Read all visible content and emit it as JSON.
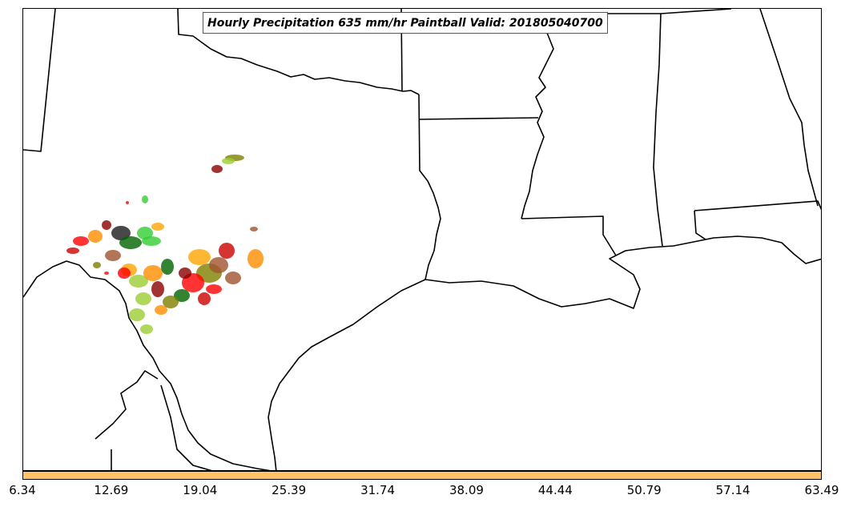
{
  "title": "Hourly Precipitation 635 mm/hr Paintball Valid: 201805040700",
  "colorbar": {
    "color": "#ffc266",
    "tick_labels": [
      "6.34",
      "12.69",
      "19.04",
      "25.39",
      "31.74",
      "38.09",
      "44.44",
      "50.79",
      "57.14",
      "63.49"
    ]
  },
  "map": {
    "boundary_color": "#000000",
    "paintball_colors": [
      "#ff0000",
      "#cc0000",
      "#8b0000",
      "#ff8c00",
      "#ffa500",
      "#9acd32",
      "#808000",
      "#32cd32",
      "#006400",
      "#1a1a1a",
      "#a0522d"
    ]
  }
}
